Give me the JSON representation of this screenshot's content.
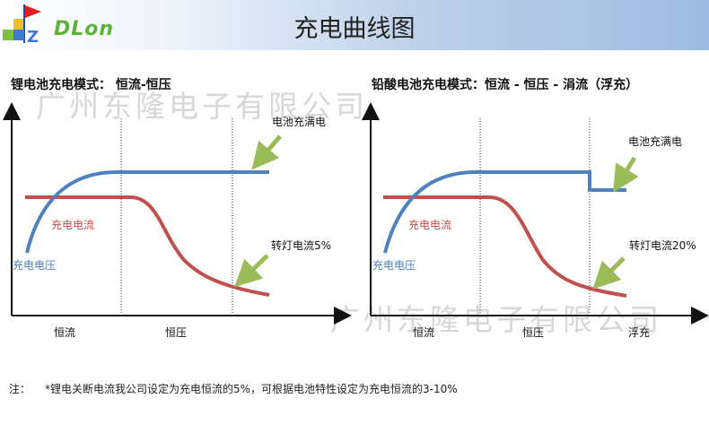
{
  "header": {
    "title": "充电曲线图",
    "logo_text": "DLon"
  },
  "watermark": "广州东隆电子有限公司",
  "panel_left": {
    "title": "锂电池充电模式： 恒流-恒压",
    "label_full": "电池充满电",
    "label_current": "充电电流",
    "label_voltage": "充电电压",
    "label_turn": "转灯电流5%",
    "x_labels": [
      "恒流",
      "恒压"
    ]
  },
  "panel_right": {
    "title": "铅酸电池充电模式：恒流 - 恒压 - 涓流（浮充）",
    "label_full": "电池充满电",
    "label_current": "充电电流",
    "label_voltage": "充电电压",
    "label_turn": "转灯电流20%",
    "x_labels": [
      "恒流",
      "恒压",
      "浮充"
    ]
  },
  "note": {
    "prefix": "注：",
    "text": "*锂电关断电流我公司设定为充电恒流的5%，可根据电池特性设定为充电恒流的3-10%"
  },
  "colors": {
    "voltage_curve": "#4f81bd",
    "current_curve": "#c0504d",
    "arrow": "#9bbb59",
    "label_blue": "#4f81bd",
    "label_red": "#c0504d"
  }
}
